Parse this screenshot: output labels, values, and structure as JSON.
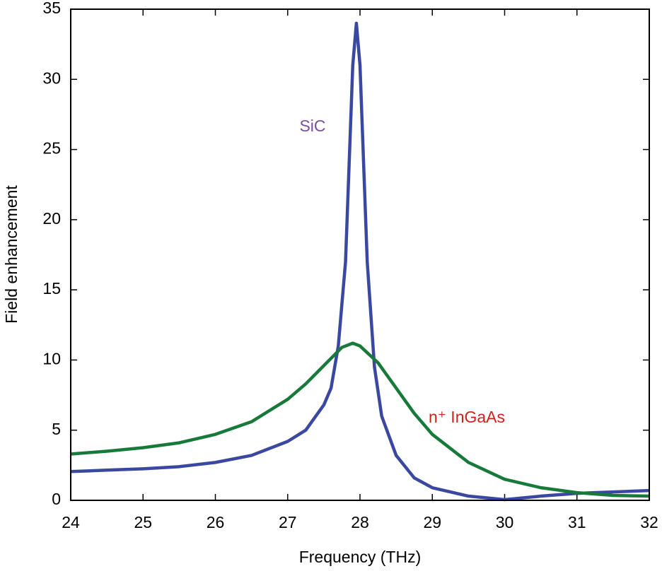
{
  "chart_data": {
    "type": "line",
    "x_label": "Frequency (THz)",
    "y_label": "Field enhancement",
    "xlim": [
      24,
      32
    ],
    "xticks": [
      24,
      25,
      26,
      27,
      28,
      29,
      30,
      31,
      32
    ],
    "ylim": [
      0,
      35
    ],
    "yticks": [
      0,
      5,
      10,
      15,
      20,
      25,
      30,
      35
    ],
    "series": [
      {
        "name": "SiC",
        "color": "#3b48a0",
        "label_color": "#7a4f9b",
        "x": [
          24,
          24.5,
          25,
          25.5,
          26,
          26.5,
          27,
          27.25,
          27.5,
          27.6,
          27.7,
          27.8,
          27.85,
          27.9,
          27.95,
          28.0,
          28.05,
          28.1,
          28.2,
          28.3,
          28.5,
          28.75,
          29,
          29.5,
          30,
          30.5,
          31,
          31.5,
          32
        ],
        "values": [
          2.05,
          2.15,
          2.25,
          2.4,
          2.7,
          3.2,
          4.2,
          5.0,
          6.8,
          8,
          11,
          17,
          24,
          31,
          34,
          31,
          24,
          17,
          9.5,
          6.0,
          3.2,
          1.6,
          0.9,
          0.3,
          0.05,
          0.3,
          0.5,
          0.6,
          0.7
        ]
      },
      {
        "name": "n⁺ InGaAs",
        "color": "#17793a",
        "label_color": "#d0211c",
        "x": [
          24,
          24.5,
          25,
          25.5,
          26,
          26.5,
          27,
          27.25,
          27.5,
          27.75,
          27.9,
          28,
          28.25,
          28.5,
          28.75,
          29,
          29.5,
          30,
          30.5,
          31,
          31.5,
          32
        ],
        "values": [
          3.3,
          3.5,
          3.75,
          4.1,
          4.7,
          5.6,
          7.2,
          8.3,
          9.6,
          10.9,
          11.2,
          11.0,
          9.8,
          8.0,
          6.2,
          4.7,
          2.7,
          1.5,
          0.9,
          0.55,
          0.35,
          0.3
        ]
      }
    ]
  }
}
